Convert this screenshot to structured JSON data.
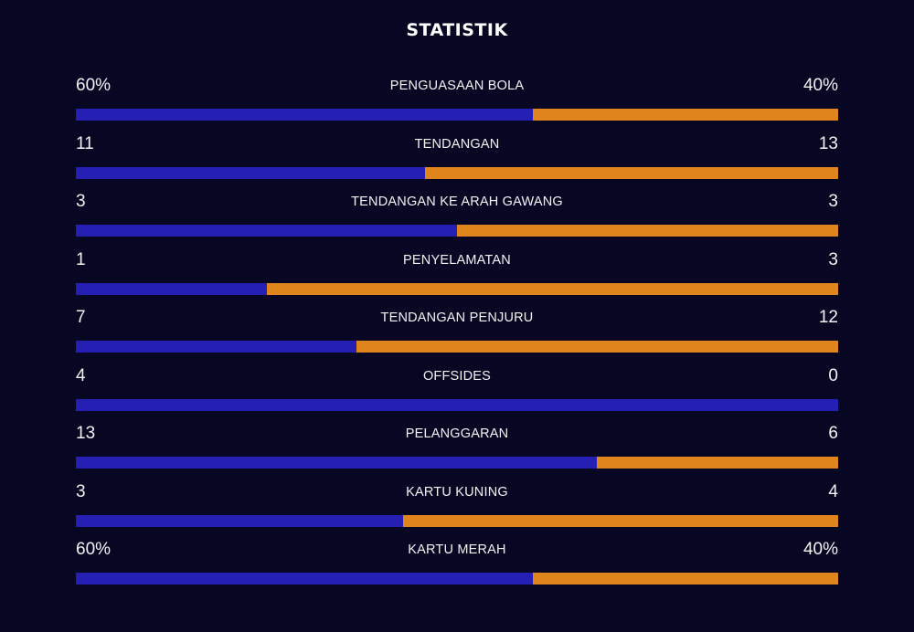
{
  "header": {
    "title": "STATISTIK"
  },
  "colors": {
    "background": "#080723",
    "home_bar": "#2520b3",
    "away_bar": "#e0851c",
    "text": "#ffffff"
  },
  "stats": [
    {
      "label": "PENGUASAAN BOLA",
      "home": "60%",
      "away": "40%",
      "home_share": 0.6
    },
    {
      "label": "TENDANGAN",
      "home": "11",
      "away": "13",
      "home_share": 0.458
    },
    {
      "label": "TENDANGAN KE ARAH GAWANG",
      "home": "3",
      "away": "3",
      "home_share": 0.5
    },
    {
      "label": "PENYELAMATAN",
      "home": "1",
      "away": "3",
      "home_share": 0.25
    },
    {
      "label": "TENDANGAN PENJURU",
      "home": "7",
      "away": "12",
      "home_share": 0.368
    },
    {
      "label": "OFFSIDES",
      "home": "4",
      "away": "0",
      "home_share": 1.0
    },
    {
      "label": "PELANGGARAN",
      "home": "13",
      "away": "6",
      "home_share": 0.684
    },
    {
      "label": "KARTU KUNING",
      "home": "3",
      "away": "4",
      "home_share": 0.429
    },
    {
      "label": "KARTU MERAH",
      "home": "60%",
      "away": "40%",
      "home_share": 0.6
    }
  ]
}
